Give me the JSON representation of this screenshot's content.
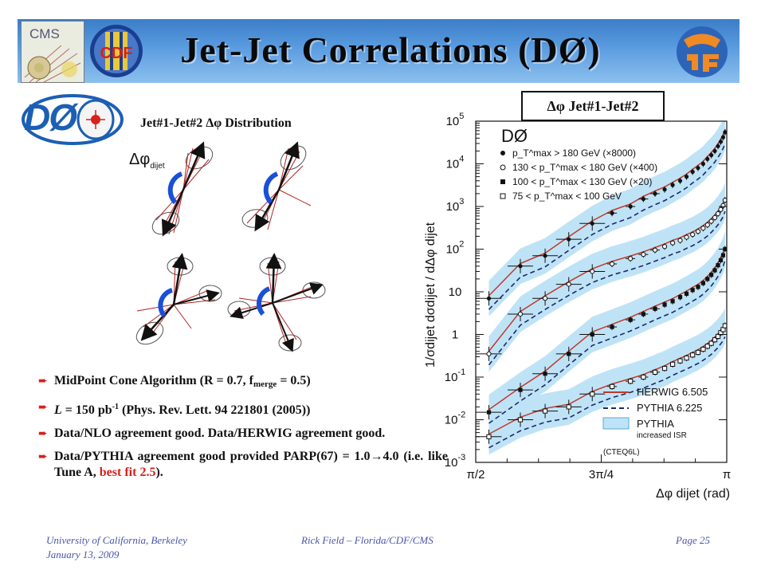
{
  "slide": {
    "title": "Jet-Jet Correlations (DØ)",
    "colors": {
      "banner": "#4a8fd6",
      "accent_red": "#d8201c",
      "footer": "#4a56a8",
      "band": "#bfe3f6"
    },
    "logos": {
      "cms": "CMS",
      "cdf": "CDF",
      "d0": "DØ"
    }
  },
  "diagram": {
    "title": "Jet#1-Jet#2  Δφ Distribution",
    "label": "Δφ",
    "label_sub": "dijet"
  },
  "bullets": [
    {
      "text": "MidPoint Cone Algorithm  (R = 0.7, f",
      "sub": "merge",
      "text2": " = 0.5)"
    },
    {
      "symbol": "L",
      "text": " = 150 pb",
      "sup": "-1",
      "text2": " (Phys. Rev. Lett. 94 221801 (2005))"
    },
    {
      "text": "Data/NLO agreement good. Data/HERWIG agreement good."
    },
    {
      "text": "Data/PYTHIA agreement good provided PARP(67) = 1.0→4.0 (i.e. like Tune A, ",
      "red": "best fit 2.5",
      "text2": ")."
    }
  ],
  "chart_label": "Δφ Jet#1-Jet#2",
  "chart_data": {
    "type": "scatter",
    "experiment": "DØ",
    "ylabel": "1/σdijet  dσdijet / dΔφ dijet",
    "xlabel": "Δφ dijet  (rad)",
    "xticks": [
      "π/2",
      "3π/4",
      "π"
    ],
    "x_unit": "rad",
    "xlim": [
      1.5708,
      3.1416
    ],
    "yscale": "log",
    "yticks": [
      "10^-3",
      "10^-2",
      "10^-1",
      "1",
      "10",
      "10^2",
      "10^3",
      "10^4",
      "10^5"
    ],
    "ylim": [
      0.001,
      100000
    ],
    "legend": {
      "data": [
        {
          "marker": "filled-circle",
          "label": "p_T^max > 180 GeV (×8000)"
        },
        {
          "marker": "open-circle",
          "label": "130 < p_T^max < 180 GeV (×400)"
        },
        {
          "marker": "filled-square",
          "label": "100 < p_T^max < 130 GeV (×20)"
        },
        {
          "marker": "open-square",
          "label": "75 < p_T^max < 100 GeV"
        }
      ],
      "models": [
        {
          "style": "solid-red",
          "label": "HERWIG 6.505"
        },
        {
          "style": "dashed-navy",
          "label": "PYTHIA 6.225"
        },
        {
          "style": "band",
          "label": "PYTHIA",
          "note": "increased ISR"
        }
      ],
      "pdf_note": "(CTEQ6L)"
    },
    "series": [
      {
        "name": "p_T^max > 180 GeV (×8000)",
        "marker": "filled-circle",
        "x": [
          1.653,
          1.85,
          2.005,
          2.153,
          2.3,
          2.424,
          2.539,
          2.62,
          2.693,
          2.753,
          2.803,
          2.85,
          2.89,
          2.928,
          2.962,
          2.994,
          3.021,
          3.045,
          3.067,
          3.087,
          3.104,
          3.119,
          3.131
        ],
        "y": [
          7,
          40,
          70,
          170,
          400,
          700,
          1000,
          1500,
          2000,
          2500,
          3200,
          4000,
          5000,
          6500,
          8000,
          10000,
          13000,
          16000,
          20000,
          26000,
          33000,
          42000,
          55000
        ]
      },
      {
        "name": "130 < p_T^max < 180 GeV (×400)",
        "marker": "open-circle",
        "x": [
          1.653,
          1.85,
          2.005,
          2.153,
          2.3,
          2.424,
          2.539,
          2.62,
          2.693,
          2.753,
          2.803,
          2.85,
          2.89,
          2.928,
          2.962,
          2.994,
          3.021,
          3.045,
          3.067,
          3.087,
          3.104,
          3.119,
          3.131
        ],
        "y": [
          0.35,
          3,
          7,
          15,
          30,
          45,
          60,
          75,
          95,
          115,
          140,
          160,
          190,
          220,
          260,
          310,
          370,
          450,
          550,
          680,
          850,
          1050,
          1400
        ]
      },
      {
        "name": "100 < p_T^max < 130 GeV (×20)",
        "marker": "filled-square",
        "x": [
          1.653,
          1.85,
          2.005,
          2.153,
          2.3,
          2.424,
          2.539,
          2.62,
          2.693,
          2.753,
          2.803,
          2.85,
          2.89,
          2.928,
          2.962,
          2.994,
          3.021,
          3.045,
          3.067,
          3.087,
          3.104,
          3.119,
          3.131
        ],
        "y": [
          0.015,
          0.05,
          0.12,
          0.35,
          1.0,
          1.5,
          2.2,
          3,
          4,
          5,
          6,
          7.5,
          9,
          11,
          13,
          16,
          20,
          25,
          32,
          42,
          55,
          72,
          100
        ]
      },
      {
        "name": "75 < p_T^max < 100 GeV",
        "marker": "open-square",
        "x": [
          1.653,
          1.85,
          2.005,
          2.153,
          2.3,
          2.424,
          2.539,
          2.62,
          2.693,
          2.753,
          2.803,
          2.85,
          2.89,
          2.928,
          2.962,
          2.994,
          3.021,
          3.045,
          3.067,
          3.087,
          3.104,
          3.119,
          3.131
        ],
        "y": [
          0.004,
          0.01,
          0.016,
          0.02,
          0.04,
          0.06,
          0.08,
          0.1,
          0.13,
          0.16,
          0.2,
          0.24,
          0.28,
          0.33,
          0.38,
          0.45,
          0.53,
          0.62,
          0.75,
          0.9,
          1.1,
          1.3,
          1.6
        ]
      }
    ]
  },
  "footer": {
    "institution": "University of California, Berkeley",
    "date": "January 13, 2009",
    "author": "Rick Field – Florida/CDF/CMS",
    "page": "Page 25"
  }
}
